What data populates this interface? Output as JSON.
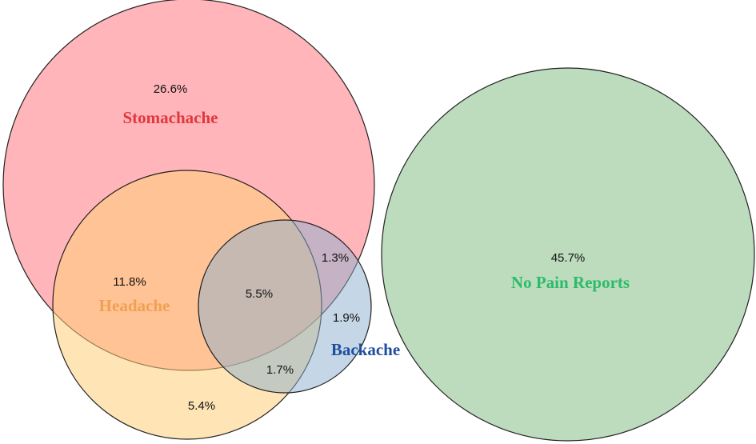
{
  "sets": [
    {
      "label": "Stomachache"
    },
    {
      "label": "Headache"
    },
    {
      "label": "Backache"
    },
    {
      "label": "No Pain Reports"
    }
  ],
  "regions": [
    {
      "label": "26.6%"
    },
    {
      "label": "11.8%"
    },
    {
      "label": "5.5%"
    },
    {
      "label": "1.3%"
    },
    {
      "label": "1.9%"
    },
    {
      "label": "1.7%"
    },
    {
      "label": "5.4%"
    },
    {
      "label": "45.7%"
    }
  ]
}
